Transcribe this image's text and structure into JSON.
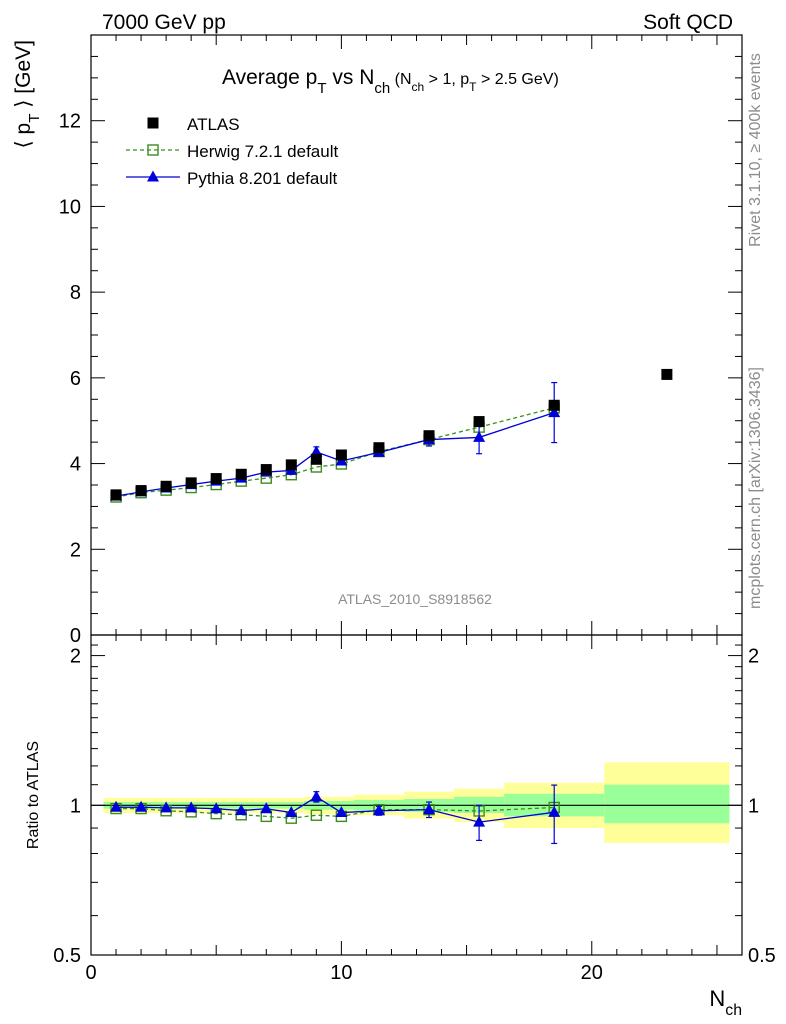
{
  "header": {
    "left": "7000 GeV pp",
    "right": "Soft QCD"
  },
  "side": {
    "top": "Rivet 3.1.10, ≥ 400k events",
    "bottom": "mcplots.cern.ch [arXiv:1306.3436]"
  },
  "chart_data": [
    {
      "type": "scatter",
      "title": "Average p_T vs N_ch (N_ch > 1, p_T > 2.5 GeV)",
      "analysis_label": "ATLAS_2010_S8918562",
      "ylabel": "⟨ p_T ⟩ [GeV]",
      "xlim": [
        0,
        26
      ],
      "ylim": [
        0,
        14
      ],
      "yticks": [
        0,
        2,
        4,
        6,
        8,
        10,
        12
      ],
      "legend_position": "top-left",
      "series": [
        {
          "name": "ATLAS",
          "color": "#000000",
          "marker": "filled-square",
          "x": [
            1,
            2,
            3,
            4,
            5,
            6,
            7,
            8,
            9,
            10,
            11.5,
            13.5,
            15.5,
            18.5,
            23
          ],
          "y": [
            3.27,
            3.37,
            3.47,
            3.55,
            3.65,
            3.75,
            3.86,
            3.97,
            4.1,
            4.2,
            4.37,
            4.65,
            4.98,
            5.36,
            6.08
          ]
        },
        {
          "name": "Herwig 7.2.1 default",
          "color": "#3c8c1e",
          "marker": "open-square",
          "line": "dashed",
          "x": [
            1,
            2,
            3,
            4,
            5,
            6,
            7,
            8,
            9,
            10,
            11.5,
            13.5,
            15.5,
            18.5
          ],
          "y": [
            3.22,
            3.32,
            3.38,
            3.44,
            3.51,
            3.59,
            3.66,
            3.74,
            3.92,
            3.99,
            4.28,
            4.56,
            4.85,
            5.3
          ]
        },
        {
          "name": "Pythia 8.201 default",
          "color": "#0000dc",
          "marker": "filled-triangle",
          "line": "solid",
          "x": [
            1,
            2,
            3,
            4,
            5,
            6,
            7,
            8,
            9,
            10,
            11.5,
            13.5,
            15.5,
            18.5
          ],
          "y": [
            3.24,
            3.34,
            3.43,
            3.51,
            3.59,
            3.66,
            3.8,
            3.84,
            4.27,
            4.06,
            4.26,
            4.56,
            4.61,
            5.19
          ],
          "yerr": [
            0.02,
            0.02,
            0.02,
            0.02,
            0.03,
            0.03,
            0.04,
            0.05,
            0.12,
            0.06,
            0.08,
            0.15,
            0.38,
            0.7
          ]
        }
      ]
    },
    {
      "type": "scatter",
      "ylabel": "Ratio to ATLAS",
      "xlabel": "N_ch",
      "xlim": [
        0,
        26
      ],
      "ylim": [
        0.5,
        2.2
      ],
      "yscale": "log",
      "yticks": [
        0.5,
        1,
        2
      ],
      "xticks": [
        0,
        10,
        20
      ],
      "bands": {
        "inner_color": "#99ff99",
        "outer_color": "#ffff99",
        "bins": [
          {
            "x0": 0.5,
            "x1": 8.5,
            "inner": [
              0.985,
              1.015
            ],
            "outer": [
              0.965,
              1.035
            ]
          },
          {
            "x0": 8.5,
            "x1": 10.5,
            "inner": [
              0.98,
              1.02
            ],
            "outer": [
              0.96,
              1.04
            ]
          },
          {
            "x0": 10.5,
            "x1": 12.5,
            "inner": [
              0.975,
              1.025
            ],
            "outer": [
              0.955,
              1.05
            ]
          },
          {
            "x0": 12.5,
            "x1": 14.5,
            "inner": [
              0.97,
              1.03
            ],
            "outer": [
              0.94,
              1.065
            ]
          },
          {
            "x0": 14.5,
            "x1": 16.5,
            "inner": [
              0.965,
              1.04
            ],
            "outer": [
              0.925,
              1.08
            ]
          },
          {
            "x0": 16.5,
            "x1": 20.5,
            "inner": [
              0.95,
              1.055
            ],
            "outer": [
              0.9,
              1.11
            ]
          },
          {
            "x0": 20.5,
            "x1": 25.5,
            "inner": [
              0.92,
              1.1
            ],
            "outer": [
              0.84,
              1.22
            ]
          }
        ]
      },
      "series": [
        {
          "name": "Herwig 7.2.1 default",
          "color": "#3c8c1e",
          "marker": "open-square",
          "line": "dashed",
          "x": [
            1,
            2,
            3,
            4,
            5,
            6,
            7,
            8,
            9,
            10,
            11.5,
            13.5,
            15.5,
            18.5
          ],
          "y": [
            0.985,
            0.985,
            0.975,
            0.97,
            0.962,
            0.957,
            0.95,
            0.942,
            0.955,
            0.95,
            0.98,
            0.98,
            0.974,
            0.99
          ]
        },
        {
          "name": "Pythia 8.201 default",
          "color": "#0000dc",
          "marker": "filled-triangle",
          "line": "solid",
          "x": [
            1,
            2,
            3,
            4,
            5,
            6,
            7,
            8,
            9,
            10,
            11.5,
            13.5,
            15.5,
            18.5
          ],
          "y": [
            0.991,
            0.991,
            0.988,
            0.988,
            0.984,
            0.976,
            0.984,
            0.967,
            1.04,
            0.967,
            0.975,
            0.98,
            0.925,
            0.968
          ],
          "yerr": [
            0.01,
            0.01,
            0.01,
            0.01,
            0.01,
            0.01,
            0.01,
            0.015,
            0.025,
            0.015,
            0.02,
            0.035,
            0.075,
            0.13
          ]
        }
      ]
    }
  ]
}
